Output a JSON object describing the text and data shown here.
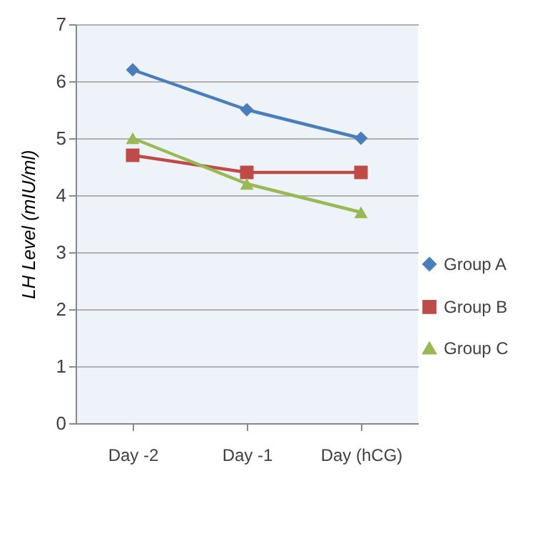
{
  "chart_data": {
    "type": "line",
    "ylabel": "LH Level  (mIU/ml)",
    "categories": [
      "Day -2",
      "Day -1",
      "Day (hCG)"
    ],
    "series": [
      {
        "name": "Group A",
        "color": "#4a7ebb",
        "marker": "diamond",
        "values": [
          6.2,
          5.5,
          5.0
        ]
      },
      {
        "name": "Group B",
        "color": "#be4b48",
        "marker": "square",
        "values": [
          4.7,
          4.4,
          4.4
        ]
      },
      {
        "name": "Group C",
        "color": "#98b954",
        "marker": "triangle",
        "values": [
          5.0,
          4.2,
          3.7
        ]
      }
    ],
    "ylim": [
      0,
      7
    ],
    "yticks": [
      0,
      1,
      2,
      3,
      4,
      5,
      6,
      7
    ],
    "grid": "y",
    "legend": "right"
  }
}
